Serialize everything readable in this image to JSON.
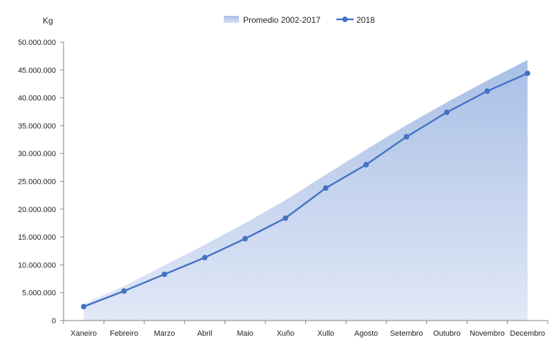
{
  "chart_data": {
    "type": "area",
    "ylabel": "Kg",
    "ylim": [
      0,
      50000000
    ],
    "y_ticks": [
      "0",
      "5.000.000",
      "10.000.000",
      "15.000.000",
      "20.000.000",
      "25.000.000",
      "30.000.000",
      "35.000.000",
      "40.000.000",
      "45.000.000",
      "50.000.000"
    ],
    "categories": [
      "Xaneiro",
      "Febreiro",
      "Marzo",
      "Abril",
      "Maio",
      "Xuño",
      "Xullo",
      "Agosto",
      "Setembro",
      "Outubro",
      "Novembro",
      "Decembro"
    ],
    "legend_position": "top-center",
    "grid": false,
    "series": [
      {
        "name": "Promedio 2002-2017",
        "kind": "area",
        "color": "#b4c6e7",
        "values": [
          3000000,
          6200000,
          9900000,
          13600000,
          17500000,
          21600000,
          26200000,
          30700000,
          35100000,
          39200000,
          43100000,
          46800000
        ]
      },
      {
        "name": "2018",
        "kind": "line",
        "color": "#4472c4",
        "values": [
          2500000,
          5300000,
          8300000,
          11300000,
          14700000,
          18400000,
          23800000,
          28000000,
          33000000,
          37400000,
          41200000,
          44400000
        ]
      }
    ]
  }
}
